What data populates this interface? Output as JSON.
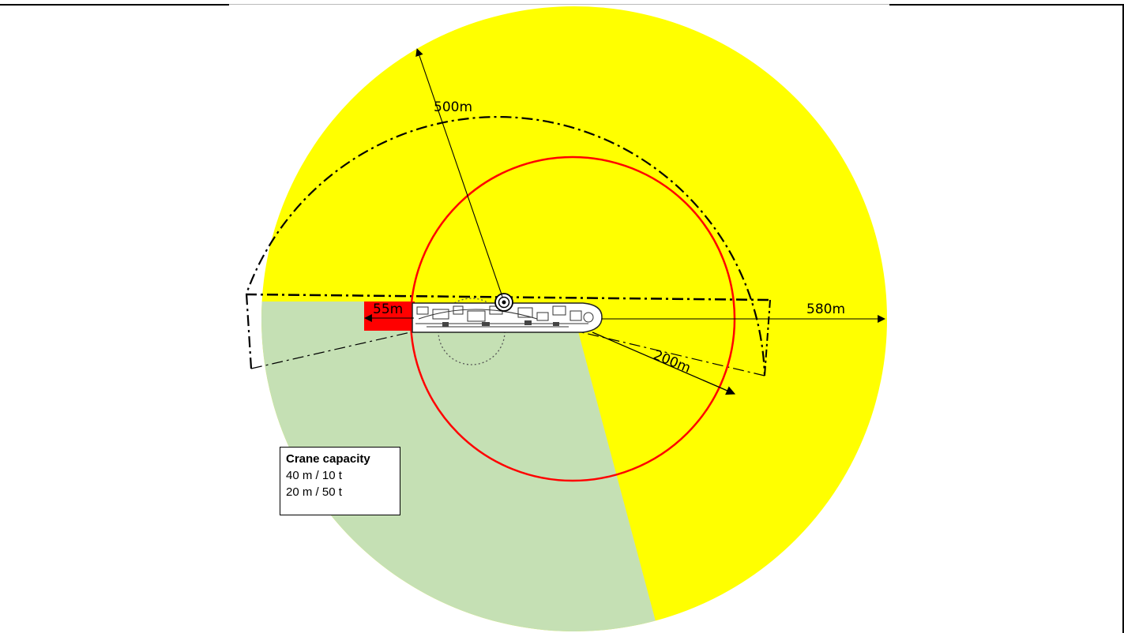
{
  "diagram": {
    "labels": {
      "radius_500": "500m",
      "radius_580": "580m",
      "radius_200": "200m",
      "radius_55": "55m"
    },
    "legend": {
      "title": "Crane capacity",
      "rows": [
        "40 m / 10 t",
        "20 m / 50 t"
      ]
    },
    "colors": {
      "outer_zone": "#ffff00",
      "sector_zone": "#c5e0b4",
      "safety_ring": "#ff0000",
      "exclusion_box": "#ff0000",
      "lines": "#000000"
    }
  }
}
